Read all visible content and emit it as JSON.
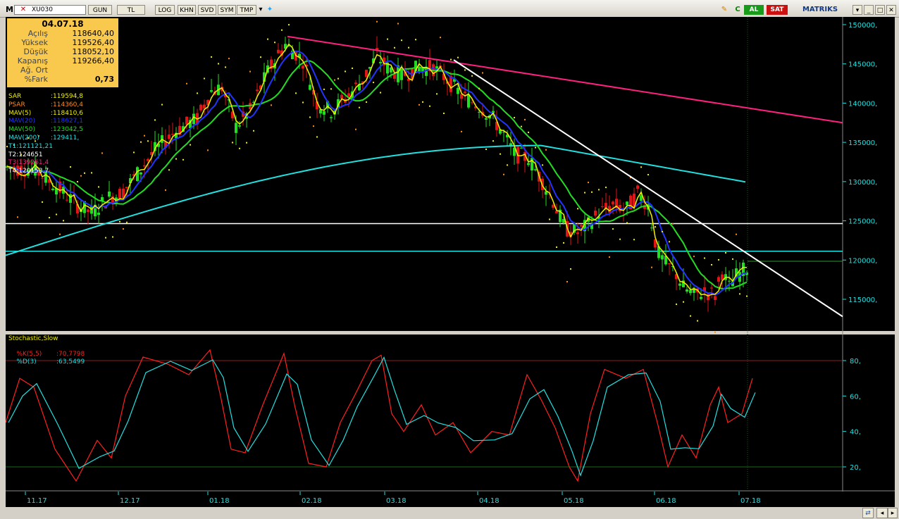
{
  "toolbar": {
    "symbol": "XU030",
    "buttons": [
      "GUN",
      "TL",
      "LOG",
      "KHN",
      "SVD",
      "SYM",
      "TMP"
    ],
    "buy_label": "AL",
    "sell_label": "SAT",
    "brand": "MATRIKS"
  },
  "info_panel": {
    "date": "04.07.18",
    "rows": [
      {
        "label": "Açılış",
        "value": "118640,40"
      },
      {
        "label": "Yüksek",
        "value": "119526,40"
      },
      {
        "label": "Düşük",
        "value": "118052,10"
      },
      {
        "label": "Kapanış",
        "value": "119266,40"
      },
      {
        "label": "Ağ. Ort",
        "value": ""
      },
      {
        "label": "%Fark",
        "value": "0,73"
      }
    ]
  },
  "legend": [
    {
      "label": "SAR",
      "value": ":119594,8",
      "color": "#f0f000"
    },
    {
      "label": "PSAR",
      "value": ":114360,4",
      "color": "#ff8c1a"
    },
    {
      "label": "MAV(5)",
      "value": ":118410,6",
      "color": "#f0f000"
    },
    {
      "label": "MAV(20)",
      "value": ":118627,1",
      "color": "#2233ff"
    },
    {
      "label": "MAV(50)",
      "value": ":123042,5",
      "color": "#22dd22"
    },
    {
      "label": "MAV(200)",
      "value": ":129411,",
      "color": "#22e0e0"
    },
    {
      "label": "T1:121121,21",
      "value": "",
      "color": "#22e0e0"
    },
    {
      "label": "T2:124651",
      "value": "",
      "color": "#ffffff"
    },
    {
      "label": "T3:139261,4",
      "value": "",
      "color": "#ff2080"
    },
    {
      "label": "T4:120153,7",
      "value": "",
      "color": "#ffffff"
    }
  ],
  "stoch_legend": {
    "title": "Stochastic,Slow",
    "title_color": "#f0f000",
    "k_label": "%K(5,5)",
    "k_value": ":70,7798",
    "k_color": "#ff2020",
    "d_label": "%D(3)",
    "d_value": ":63,5499",
    "d_color": "#22e0e0"
  },
  "price_axis": [
    "150000,",
    "145000,",
    "140000,",
    "135000,",
    "130000,",
    "125000,",
    "120000,",
    "115000,"
  ],
  "stoch_axis": [
    "80,",
    "60,",
    "40,",
    "20,"
  ],
  "time_axis": [
    "11.17",
    "12.17",
    "01.18",
    "02.18",
    "03.18",
    "04.18",
    "05.18",
    "06.18",
    "07.18"
  ],
  "chart_data": {
    "type": "candlestick",
    "x_range": [
      "11.17",
      "07.18"
    ],
    "y_range": [
      112000,
      152000
    ],
    "close_anchors": [
      {
        "date": "11.17",
        "close": 131500
      },
      {
        "date": "12.17",
        "close": 128000
      },
      {
        "date": "01.18",
        "close": 141500
      },
      {
        "date": "02.18",
        "close": 145500
      },
      {
        "date": "03.18",
        "close": 144500
      },
      {
        "date": "04.18",
        "close": 139500
      },
      {
        "date": "05.18",
        "close": 124000
      },
      {
        "date": "06.18",
        "close": 121000
      },
      {
        "date": "07.18",
        "close": 119266.4
      }
    ],
    "horizontal_lines": [
      124651,
      121121.21
    ],
    "stochastic": {
      "k_last": 70.7798,
      "d_last": 63.5499,
      "levels": [
        80,
        20
      ]
    }
  }
}
